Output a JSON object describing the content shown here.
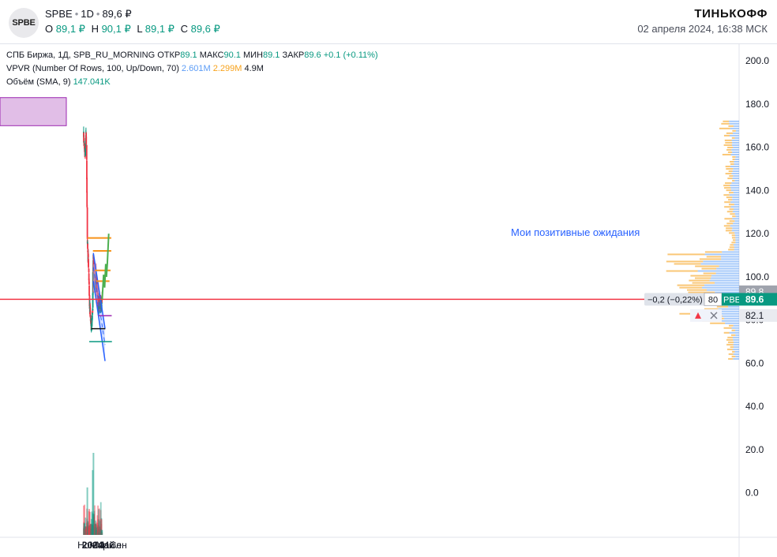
{
  "header": {
    "logo_text": "SPBE",
    "ticker": "SPBE",
    "interval": "1D",
    "last_price": "89,6 ₽",
    "ohlc": [
      {
        "label": "O",
        "value": "89,1 ₽"
      },
      {
        "label": "H",
        "value": "90,1 ₽"
      },
      {
        "label": "L",
        "value": "89,1 ₽"
      },
      {
        "label": "C",
        "value": "89,6 ₽"
      }
    ],
    "brand": "ТИНЬКОФФ",
    "timestamp": "02 апреля 2024, 16:38 МСК"
  },
  "legend": {
    "main": {
      "name": "СПБ Биржа, 1Д, SPB_RU_MORNING",
      "open_label": "ОТКР",
      "open": "89.1",
      "high_label": "МАКС",
      "high": "90.1",
      "low_label": "МИН",
      "low": "89.1",
      "close_label": "ЗАКР",
      "close": "89.6",
      "change": "+0.1 (+0.11%)"
    },
    "vpvr": {
      "name": "VPVR (Number Of Rows, 100, Up/Down, 70)",
      "up": "2.601M",
      "down": "2.299M",
      "total": "4.9M"
    },
    "volume": {
      "name": "Объём (SMA, 9)",
      "value": "147.041K"
    }
  },
  "annotation": "Мои позитивные ожидания",
  "price_badges": {
    "current": "89.6",
    "current_symbol": "SPBE",
    "upper": "89.8",
    "lower": "82.1",
    "change": "−0,2 (−0,22%)",
    "qty": "80"
  },
  "colors": {
    "up": "#089981",
    "down": "#f23645",
    "orange": "#f7931a",
    "forecast": "#4caf50",
    "channel": "#2962ff",
    "purple": "#9c27b0"
  },
  "chart_data": {
    "type": "candlestick",
    "y_ticks": [
      "200.0",
      "180.0",
      "160.0",
      "140.0",
      "120.0",
      "100.0",
      "80.0",
      "60.0",
      "40.0",
      "20.0",
      "0.0"
    ],
    "x_ticks": [
      "Ноя",
      "2024",
      "Мар",
      "Май",
      "Июл",
      "Сен"
    ],
    "ylim": [
      -20,
      208
    ],
    "price_path": [
      [
        "2023-10-09",
        165
      ],
      [
        "2023-10-23",
        157
      ],
      [
        "2023-10-30",
        166
      ],
      [
        "2023-11-06",
        161
      ],
      [
        "2023-11-09",
        140
      ],
      [
        "2023-11-10",
        133
      ],
      [
        "2023-11-13",
        117
      ],
      [
        "2023-11-20",
        109
      ],
      [
        "2023-11-27",
        102
      ],
      [
        "2023-12-04",
        86
      ],
      [
        "2023-12-11",
        84
      ],
      [
        "2023-12-18",
        77
      ],
      [
        "2023-12-25",
        78
      ],
      [
        "2024-01-03",
        83
      ],
      [
        "2024-01-05",
        104
      ],
      [
        "2024-01-10",
        110
      ],
      [
        "2024-01-17",
        102
      ],
      [
        "2024-01-25",
        96
      ],
      [
        "2024-02-05",
        98
      ],
      [
        "2024-02-15",
        94
      ],
      [
        "2024-02-26",
        84
      ],
      [
        "2024-03-05",
        88
      ],
      [
        "2024-03-18",
        87
      ],
      [
        "2024-03-28",
        88
      ],
      [
        "2024-04-02",
        89.6
      ]
    ],
    "horizontal_levels": [
      {
        "price": 118,
        "color": "orange"
      },
      {
        "price": 112,
        "color": "orange"
      },
      {
        "price": 103,
        "color": "orange"
      },
      {
        "price": 98,
        "color": "orange"
      },
      {
        "price": 89.6,
        "color": "red"
      },
      {
        "price": 82,
        "color": "purple"
      },
      {
        "price": 76,
        "color": "black"
      },
      {
        "price": 70,
        "color": "teal"
      }
    ],
    "forecast_path": [
      [
        "2024-04-02",
        89.6
      ],
      [
        "2024-04-15",
        101
      ],
      [
        "2024-04-25",
        95
      ],
      [
        "2024-05-05",
        106
      ],
      [
        "2024-05-12",
        100
      ],
      [
        "2024-05-20",
        106
      ],
      [
        "2024-06-03",
        120
      ]
    ],
    "channel": {
      "upper": [
        [
          "2024-01-09",
          111
        ],
        [
          "2024-04-29",
          76
        ]
      ],
      "lower": [
        [
          "2024-01-09",
          98
        ],
        [
          "2024-04-29",
          61
        ]
      ]
    },
    "volume_peak": 38
  }
}
